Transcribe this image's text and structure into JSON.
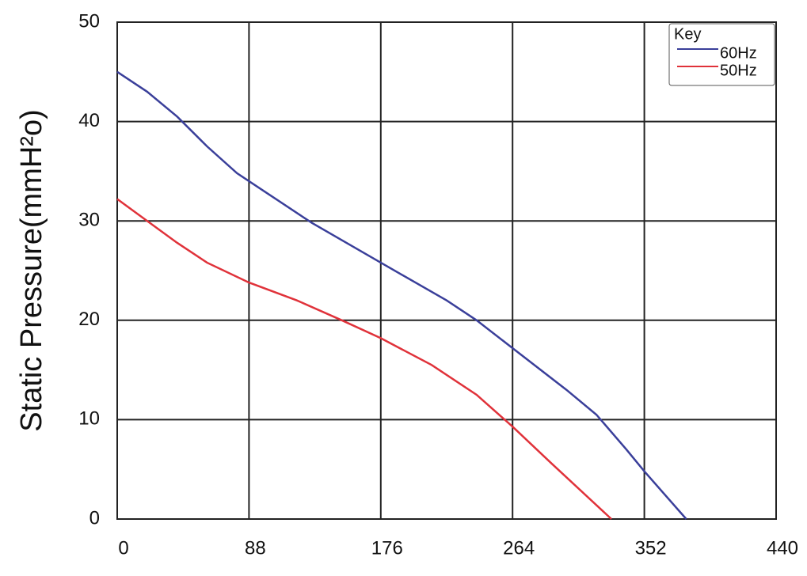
{
  "chart_data": {
    "type": "line",
    "y_label": "Static Pressure(mmH²o)",
    "legend_title": "Key",
    "legend": "upper right",
    "grid": true,
    "xlim": [
      0,
      440
    ],
    "xticks": [
      0,
      88,
      176,
      264,
      352,
      440
    ],
    "ylim": [
      0,
      50
    ],
    "yticks": [
      0,
      10,
      20,
      30,
      40,
      50
    ],
    "series": [
      {
        "name": "60Hz",
        "color": "#3a3f9a",
        "x": [
          0,
          20,
          40,
          60,
          80,
          100,
          130,
          176,
          220,
          240,
          264,
          300,
          320,
          340,
          352,
          380
        ],
        "values": [
          45,
          43,
          40.5,
          37.5,
          34.8,
          32.8,
          29.8,
          25.8,
          22,
          20,
          17.2,
          13,
          10.5,
          7,
          4.8,
          0
        ]
      },
      {
        "name": "50Hz",
        "color": "#e0323a",
        "x": [
          0,
          20,
          40,
          60,
          88,
          120,
          150,
          176,
          210,
          240,
          264,
          290,
          330
        ],
        "values": [
          32.2,
          30,
          27.8,
          25.8,
          23.8,
          22,
          20,
          18.2,
          15.5,
          12.5,
          9.3,
          5.6,
          0
        ]
      }
    ]
  }
}
